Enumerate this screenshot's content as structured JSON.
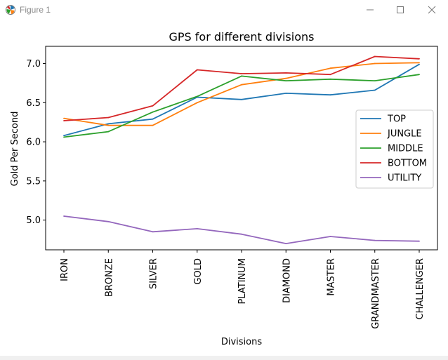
{
  "window": {
    "title": "Figure 1",
    "minimize_icon": "minimize-icon",
    "maximize_icon": "maximize-icon",
    "close_icon": "close-icon"
  },
  "colors": {
    "TOP": "#1f77b4",
    "JUNGLE": "#ff7f0e",
    "MIDDLE": "#2ca02c",
    "BOTTOM": "#d62728",
    "UTILITY": "#9467bd"
  },
  "chart_data": {
    "type": "line",
    "title": "GPS for different divisions",
    "xlabel": "Divisions",
    "ylabel": "Gold Per Second",
    "categories": [
      "IRON",
      "BRONZE",
      "SILVER",
      "GOLD",
      "PLATINUM",
      "DIAMOND",
      "MASTER",
      "GRANDMASTER",
      "CHALLENGER"
    ],
    "ylim": [
      4.62,
      7.22
    ],
    "yticks": [
      5.0,
      5.5,
      6.0,
      6.5,
      7.0
    ],
    "ytick_labels": [
      "5.0",
      "5.5",
      "6.0",
      "6.5",
      "7.0"
    ],
    "grid": false,
    "legend_position": "center-right",
    "series": [
      {
        "name": "TOP",
        "values": [
          6.08,
          6.23,
          6.29,
          6.57,
          6.54,
          6.62,
          6.6,
          6.66,
          6.99
        ]
      },
      {
        "name": "JUNGLE",
        "values": [
          6.3,
          6.21,
          6.21,
          6.5,
          6.73,
          6.81,
          6.94,
          7.0,
          7.01
        ]
      },
      {
        "name": "MIDDLE",
        "values": [
          6.06,
          6.13,
          6.38,
          6.58,
          6.84,
          6.78,
          6.8,
          6.78,
          6.86
        ]
      },
      {
        "name": "BOTTOM",
        "values": [
          6.27,
          6.31,
          6.46,
          6.92,
          6.87,
          6.88,
          6.86,
          7.09,
          7.06
        ]
      },
      {
        "name": "UTILITY",
        "values": [
          5.05,
          4.98,
          4.85,
          4.89,
          4.82,
          4.7,
          4.79,
          4.74,
          4.73
        ]
      }
    ]
  }
}
